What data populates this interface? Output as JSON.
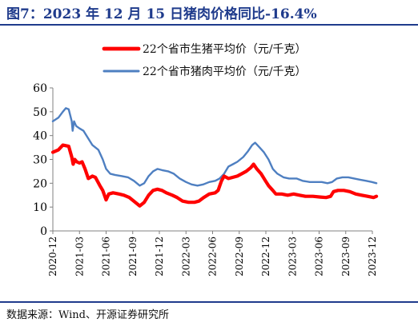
{
  "title": "图7：2023 年 12 月 15 日猪肉价格同比-16.4%",
  "source": "数据来源：Wind、开源证券研究所",
  "colors": {
    "title": "#1f3b8c",
    "live_hog": "#ff0000",
    "pork": "#4e7fc1"
  },
  "chart_data": {
    "type": "line",
    "ylim": [
      0,
      60
    ],
    "yticks": [
      0,
      10,
      20,
      30,
      40,
      50,
      60
    ],
    "xtick_labels": [
      "2020-12",
      "2021-03",
      "2021-06",
      "2021-09",
      "2021-12",
      "2022-03",
      "2022-06",
      "2022-09",
      "2022-12",
      "2023-03",
      "2023-06",
      "2023-09",
      "2023-12"
    ],
    "grid": false,
    "legend_position": "top-center",
    "series": [
      {
        "name": "22个省市生猪平均价（元/千克）",
        "color": "#ff0000",
        "points": [
          [
            "2020-12-01",
            33
          ],
          [
            "2020-12-20",
            34
          ],
          [
            "2021-01-05",
            36
          ],
          [
            "2021-01-25",
            35.5
          ],
          [
            "2021-02-05",
            31
          ],
          [
            "2021-02-10",
            28
          ],
          [
            "2021-02-15",
            30
          ],
          [
            "2021-02-22",
            29
          ],
          [
            "2021-03-01",
            28.5
          ],
          [
            "2021-03-10",
            29
          ],
          [
            "2021-03-20",
            26
          ],
          [
            "2021-04-01",
            22
          ],
          [
            "2021-04-15",
            23
          ],
          [
            "2021-04-25",
            22.5
          ],
          [
            "2021-05-10",
            19
          ],
          [
            "2021-05-20",
            17
          ],
          [
            "2021-06-01",
            13
          ],
          [
            "2021-06-10",
            15.5
          ],
          [
            "2021-06-25",
            16
          ],
          [
            "2021-07-15",
            15.5
          ],
          [
            "2021-08-01",
            15
          ],
          [
            "2021-08-20",
            14
          ],
          [
            "2021-09-10",
            12
          ],
          [
            "2021-09-25",
            10.5
          ],
          [
            "2021-10-10",
            12
          ],
          [
            "2021-10-25",
            15
          ],
          [
            "2021-11-10",
            17
          ],
          [
            "2021-11-25",
            17.5
          ],
          [
            "2021-12-10",
            17
          ],
          [
            "2021-12-25",
            16
          ],
          [
            "2022-01-15",
            15
          ],
          [
            "2022-02-01",
            14
          ],
          [
            "2022-02-20",
            12.5
          ],
          [
            "2022-03-10",
            12
          ],
          [
            "2022-03-30",
            12
          ],
          [
            "2022-04-15",
            12.5
          ],
          [
            "2022-05-01",
            14
          ],
          [
            "2022-05-20",
            15.5
          ],
          [
            "2022-06-10",
            16
          ],
          [
            "2022-06-20",
            17
          ],
          [
            "2022-07-01",
            21
          ],
          [
            "2022-07-10",
            23
          ],
          [
            "2022-07-25",
            22
          ],
          [
            "2022-08-10",
            22.5
          ],
          [
            "2022-08-25",
            23
          ],
          [
            "2022-09-10",
            24
          ],
          [
            "2022-09-25",
            25
          ],
          [
            "2022-10-10",
            26.5
          ],
          [
            "2022-10-20",
            28
          ],
          [
            "2022-10-31",
            26
          ],
          [
            "2022-11-15",
            24
          ],
          [
            "2022-11-30",
            21
          ],
          [
            "2022-12-10",
            19
          ],
          [
            "2022-12-25",
            17
          ],
          [
            "2023-01-05",
            15.5
          ],
          [
            "2023-01-25",
            15.5
          ],
          [
            "2023-02-15",
            15
          ],
          [
            "2023-03-05",
            15.5
          ],
          [
            "2023-03-25",
            15
          ],
          [
            "2023-04-15",
            14.5
          ],
          [
            "2023-05-10",
            14.5
          ],
          [
            "2023-06-05",
            14.2
          ],
          [
            "2023-06-25",
            14
          ],
          [
            "2023-07-10",
            14.5
          ],
          [
            "2023-07-20",
            16.5
          ],
          [
            "2023-08-05",
            17
          ],
          [
            "2023-08-25",
            17
          ],
          [
            "2023-09-15",
            16.5
          ],
          [
            "2023-10-05",
            15.5
          ],
          [
            "2023-10-25",
            15
          ],
          [
            "2023-11-15",
            14.5
          ],
          [
            "2023-12-05",
            14
          ],
          [
            "2023-12-15",
            14.5
          ]
        ]
      },
      {
        "name": "22个省市猪肉平均价（元/千克）",
        "color": "#4e7fc1",
        "points": [
          [
            "2020-12-01",
            46
          ],
          [
            "2020-12-20",
            47.5
          ],
          [
            "2021-01-05",
            50
          ],
          [
            "2021-01-15",
            51.5
          ],
          [
            "2021-01-25",
            51
          ],
          [
            "2021-02-05",
            46
          ],
          [
            "2021-02-08",
            42
          ],
          [
            "2021-02-13",
            46
          ],
          [
            "2021-02-20",
            44
          ],
          [
            "2021-03-01",
            43
          ],
          [
            "2021-03-15",
            42
          ],
          [
            "2021-03-30",
            39
          ],
          [
            "2021-04-15",
            36
          ],
          [
            "2021-05-05",
            34
          ],
          [
            "2021-05-20",
            30
          ],
          [
            "2021-06-01",
            26
          ],
          [
            "2021-06-15",
            24
          ],
          [
            "2021-07-01",
            23.5
          ],
          [
            "2021-07-25",
            23
          ],
          [
            "2021-08-15",
            22.5
          ],
          [
            "2021-09-05",
            21
          ],
          [
            "2021-09-25",
            19
          ],
          [
            "2021-10-10",
            20
          ],
          [
            "2021-10-25",
            23
          ],
          [
            "2021-11-10",
            25
          ],
          [
            "2021-11-25",
            26
          ],
          [
            "2021-12-10",
            25.5
          ],
          [
            "2021-12-31",
            25
          ],
          [
            "2022-01-20",
            24
          ],
          [
            "2022-02-10",
            22
          ],
          [
            "2022-03-01",
            20.5
          ],
          [
            "2022-03-20",
            19.5
          ],
          [
            "2022-04-10",
            19
          ],
          [
            "2022-04-30",
            19.5
          ],
          [
            "2022-05-20",
            20.5
          ],
          [
            "2022-06-10",
            21
          ],
          [
            "2022-06-25",
            22
          ],
          [
            "2022-07-10",
            24
          ],
          [
            "2022-07-25",
            27
          ],
          [
            "2022-08-10",
            28
          ],
          [
            "2022-08-25",
            29
          ],
          [
            "2022-09-15",
            31
          ],
          [
            "2022-10-01",
            33.5
          ],
          [
            "2022-10-15",
            36
          ],
          [
            "2022-10-25",
            37
          ],
          [
            "2022-11-10",
            35
          ],
          [
            "2022-11-25",
            33
          ],
          [
            "2022-12-10",
            30
          ],
          [
            "2022-12-25",
            26
          ],
          [
            "2023-01-10",
            24
          ],
          [
            "2023-01-31",
            22.5
          ],
          [
            "2023-02-20",
            22
          ],
          [
            "2023-03-15",
            22
          ],
          [
            "2023-04-05",
            21
          ],
          [
            "2023-04-30",
            20.5
          ],
          [
            "2023-05-20",
            20.5
          ],
          [
            "2023-06-10",
            20.5
          ],
          [
            "2023-06-30",
            20
          ],
          [
            "2023-07-15",
            20.5
          ],
          [
            "2023-08-01",
            22
          ],
          [
            "2023-08-20",
            22.5
          ],
          [
            "2023-09-10",
            22.5
          ],
          [
            "2023-09-30",
            22
          ],
          [
            "2023-10-20",
            21.5
          ],
          [
            "2023-11-10",
            21
          ],
          [
            "2023-11-30",
            20.5
          ],
          [
            "2023-12-15",
            20
          ]
        ]
      }
    ]
  }
}
